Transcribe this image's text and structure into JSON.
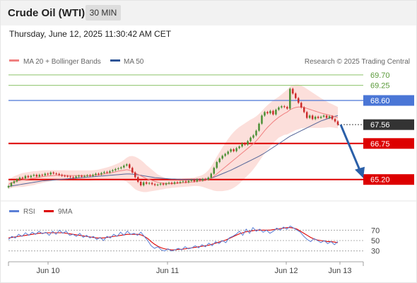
{
  "header": {
    "title": "Crude Oil (WTI)",
    "timeframe": "30 MIN",
    "datetime": "Thursday, June 12, 2025 11:30:42 AM CET"
  },
  "legend": {
    "ma20": "MA 20 + Bollinger Bands",
    "ma50": "MA 50",
    "credit": "Research © 2025 Trading Central",
    "rsi": "RSI",
    "rsi_ma": "9MA"
  },
  "colors": {
    "up": "#4a8f34",
    "down": "#cc2a2a",
    "ma20": "#f08080",
    "ma50": "#556699",
    "band": "#fcd9d5",
    "resistance": "#dd0000",
    "pivot": "#4a76d6",
    "target_green": "#8cc26a",
    "arrow": "#2a5fa8",
    "rsi": "#5b7fd6",
    "rsi_ma": "#dd0000"
  },
  "chart_data": [
    {
      "type": "candlestick",
      "y_range": [
        64.4,
        70.0
      ],
      "x_ticks": [
        "Jun 10",
        "Jun 11",
        "Jun 12",
        "Jun 13"
      ],
      "levels": [
        {
          "value": 69.7,
          "label": "69.70",
          "kind": "target"
        },
        {
          "value": 69.25,
          "label": "69.25",
          "kind": "target"
        },
        {
          "value": 68.6,
          "label": "68.60",
          "kind": "pivot"
        },
        {
          "value": 67.56,
          "label": "67.56",
          "kind": "last"
        },
        {
          "value": 66.75,
          "label": "66.75",
          "kind": "support"
        },
        {
          "value": 65.2,
          "label": "65.20",
          "kind": "support"
        }
      ],
      "close": [
        64.92,
        65.05,
        65.12,
        65.2,
        65.28,
        65.25,
        65.35,
        65.3,
        65.36,
        65.4,
        65.33,
        65.4,
        65.38,
        65.45,
        65.42,
        65.5,
        65.46,
        65.44,
        65.4,
        65.36,
        65.35,
        65.33,
        65.3,
        65.28,
        65.33,
        65.36,
        65.32,
        65.35,
        65.38,
        65.35,
        65.4,
        65.45,
        65.42,
        65.48,
        65.52,
        65.5,
        65.56,
        65.6,
        65.65,
        65.68,
        65.72,
        65.8,
        65.85,
        65.7,
        65.5,
        65.3,
        65.1,
        64.95,
        65.08,
        65.02,
        65.05,
        65.0,
        64.96,
        64.98,
        65.02,
        64.98,
        65.03,
        65.06,
        65.02,
        65.08,
        65.06,
        65.1,
        65.12,
        65.08,
        65.14,
        65.18,
        65.12,
        65.2,
        65.16,
        65.22,
        65.2,
        65.28,
        65.45,
        65.7,
        65.95,
        66.1,
        66.22,
        66.3,
        66.4,
        66.5,
        66.42,
        66.55,
        66.62,
        66.75,
        66.7,
        66.85,
        67.0,
        67.1,
        67.3,
        67.6,
        67.95,
        68.1,
        68.05,
        68.15,
        68.0,
        68.2,
        68.3,
        68.35,
        68.32,
        68.25,
        69.1,
        68.9,
        68.7,
        68.5,
        68.3,
        68.1,
        67.85,
        67.95,
        67.8,
        67.9,
        67.85,
        67.9,
        67.95,
        67.85,
        67.92,
        67.8,
        67.7,
        67.56
      ],
      "ma20": [
        65.0,
        65.05,
        65.1,
        65.13,
        65.16,
        65.18,
        65.2,
        65.22,
        65.24,
        65.26,
        65.28,
        65.3,
        65.32,
        65.34,
        65.35,
        65.36,
        65.37,
        65.38,
        65.38,
        65.38,
        65.38,
        65.37,
        65.37,
        65.37,
        65.37,
        65.37,
        65.37,
        65.37,
        65.37,
        65.37,
        65.38,
        65.39,
        65.4,
        65.42,
        65.44,
        65.46,
        65.48,
        65.5,
        65.53,
        65.56,
        65.58,
        65.6,
        65.62,
        65.6,
        65.55,
        65.48,
        65.42,
        65.36,
        65.3,
        65.24,
        65.2,
        65.16,
        65.12,
        65.08,
        65.06,
        65.04,
        65.03,
        65.02,
        65.02,
        65.03,
        65.04,
        65.05,
        65.06,
        65.07,
        65.08,
        65.09,
        65.1,
        65.12,
        65.13,
        65.14,
        65.16,
        65.2,
        65.26,
        65.34,
        65.44,
        65.54,
        65.64,
        65.74,
        65.84,
        65.94,
        66.04,
        66.14,
        66.24,
        66.34,
        66.44,
        66.54,
        66.64,
        66.74,
        66.86,
        67.0,
        67.15,
        67.3,
        67.44,
        67.56,
        67.68,
        67.78,
        67.88,
        67.96,
        68.04,
        68.1,
        68.2,
        68.26,
        68.3,
        68.32,
        68.32,
        68.3,
        68.26,
        68.22,
        68.18,
        68.14,
        68.1,
        68.06,
        68.03,
        68.0,
        67.97,
        67.94,
        67.9,
        67.86
      ],
      "bb_width": [
        0.2,
        0.22,
        0.24,
        0.26,
        0.28,
        0.3,
        0.3,
        0.3,
        0.3,
        0.3,
        0.28,
        0.28,
        0.27,
        0.26,
        0.25,
        0.24,
        0.23,
        0.22,
        0.22,
        0.22,
        0.22,
        0.22,
        0.22,
        0.22,
        0.22,
        0.22,
        0.22,
        0.22,
        0.22,
        0.22,
        0.22,
        0.22,
        0.23,
        0.24,
        0.25,
        0.26,
        0.28,
        0.3,
        0.32,
        0.34,
        0.38,
        0.44,
        0.52,
        0.6,
        0.66,
        0.7,
        0.7,
        0.68,
        0.64,
        0.58,
        0.52,
        0.46,
        0.4,
        0.34,
        0.3,
        0.26,
        0.22,
        0.2,
        0.18,
        0.18,
        0.18,
        0.18,
        0.18,
        0.18,
        0.18,
        0.18,
        0.18,
        0.2,
        0.22,
        0.26,
        0.32,
        0.4,
        0.5,
        0.62,
        0.74,
        0.84,
        0.94,
        1.02,
        1.1,
        1.16,
        1.2,
        1.22,
        1.22,
        1.2,
        1.18,
        1.16,
        1.14,
        1.1,
        1.06,
        1.02,
        1.0,
        0.98,
        0.96,
        0.94,
        0.92,
        0.9,
        0.88,
        0.9,
        0.92,
        0.96,
        1.0,
        1.0,
        0.98,
        0.96,
        0.92,
        0.88,
        0.84,
        0.8,
        0.76,
        0.72,
        0.68,
        0.64,
        0.6,
        0.56,
        0.52,
        0.5,
        0.48,
        0.46
      ],
      "ma50": [
        64.9,
        64.92,
        64.94,
        64.96,
        64.98,
        65.0,
        65.02,
        65.04,
        65.06,
        65.08,
        65.1,
        65.12,
        65.14,
        65.15,
        65.16,
        65.17,
        65.18,
        65.19,
        65.2,
        65.21,
        65.22,
        65.23,
        65.24,
        65.25,
        65.26,
        65.27,
        65.28,
        65.29,
        65.3,
        65.31,
        65.32,
        65.33,
        65.34,
        65.35,
        65.36,
        65.37,
        65.38,
        65.39,
        65.4,
        65.41,
        65.42,
        65.43,
        65.44,
        65.44,
        65.43,
        65.42,
        65.4,
        65.38,
        65.36,
        65.34,
        65.32,
        65.3,
        65.28,
        65.27,
        65.26,
        65.25,
        65.24,
        65.23,
        65.22,
        65.22,
        65.21,
        65.21,
        65.2,
        65.2,
        65.2,
        65.2,
        65.2,
        65.2,
        65.2,
        65.2,
        65.21,
        65.23,
        65.26,
        65.3,
        65.35,
        65.4,
        65.45,
        65.5,
        65.55,
        65.6,
        65.66,
        65.72,
        65.78,
        65.84,
        65.9,
        65.96,
        66.02,
        66.08,
        66.14,
        66.2,
        66.27,
        66.34,
        66.42,
        66.5,
        66.58,
        66.66,
        66.74,
        66.82,
        66.9,
        66.98,
        67.06,
        67.12,
        67.18,
        67.24,
        67.3,
        67.36,
        67.42,
        67.48,
        67.54,
        67.6,
        67.66,
        67.72,
        67.76,
        67.8,
        67.84,
        67.88,
        67.92,
        67.95
      ]
    },
    {
      "type": "line",
      "title": "RSI",
      "y_range": [
        20,
        80
      ],
      "y_ticks": [
        70,
        50,
        30
      ],
      "series": [
        {
          "name": "RSI",
          "values": [
            52,
            58,
            55,
            62,
            58,
            65,
            60,
            66,
            62,
            68,
            63,
            66,
            60,
            68,
            62,
            70,
            64,
            68,
            60,
            62,
            58,
            64,
            56,
            60,
            55,
            58,
            52,
            56,
            50,
            58,
            55,
            62,
            58,
            66,
            60,
            68,
            62,
            64,
            60,
            66,
            58,
            50,
            40,
            35,
            38,
            32,
            30,
            34,
            30,
            32,
            35,
            32,
            38,
            34,
            36,
            40,
            36,
            42,
            38,
            45,
            40,
            48,
            44,
            50,
            46,
            55,
            58,
            62,
            68,
            60,
            72,
            64,
            75,
            68,
            72,
            66,
            70,
            64,
            68,
            74,
            70,
            76,
            72,
            78,
            74,
            70,
            66,
            58,
            52,
            48,
            54,
            50,
            46,
            50,
            44,
            48,
            42,
            48
          ]
        },
        {
          "name": "9MA",
          "values": [
            55,
            56,
            57,
            58,
            59,
            60,
            61,
            62,
            63,
            64,
            64,
            65,
            65,
            65,
            65,
            65,
            65,
            64,
            63,
            62,
            61,
            60,
            59,
            58,
            57,
            56,
            55,
            55,
            55,
            56,
            57,
            58,
            59,
            60,
            61,
            62,
            62,
            62,
            62,
            61,
            58,
            54,
            48,
            43,
            39,
            36,
            34,
            33,
            32,
            32,
            33,
            33,
            34,
            35,
            36,
            37,
            38,
            39,
            40,
            41,
            43,
            45,
            47,
            49,
            51,
            54,
            57,
            60,
            63,
            65,
            67,
            68,
            69,
            70,
            70,
            70,
            70,
            70,
            71,
            72,
            73,
            74,
            75,
            75,
            74,
            72,
            68,
            64,
            60,
            56,
            53,
            51,
            50,
            49,
            48,
            48,
            47,
            46
          ]
        }
      ]
    }
  ]
}
